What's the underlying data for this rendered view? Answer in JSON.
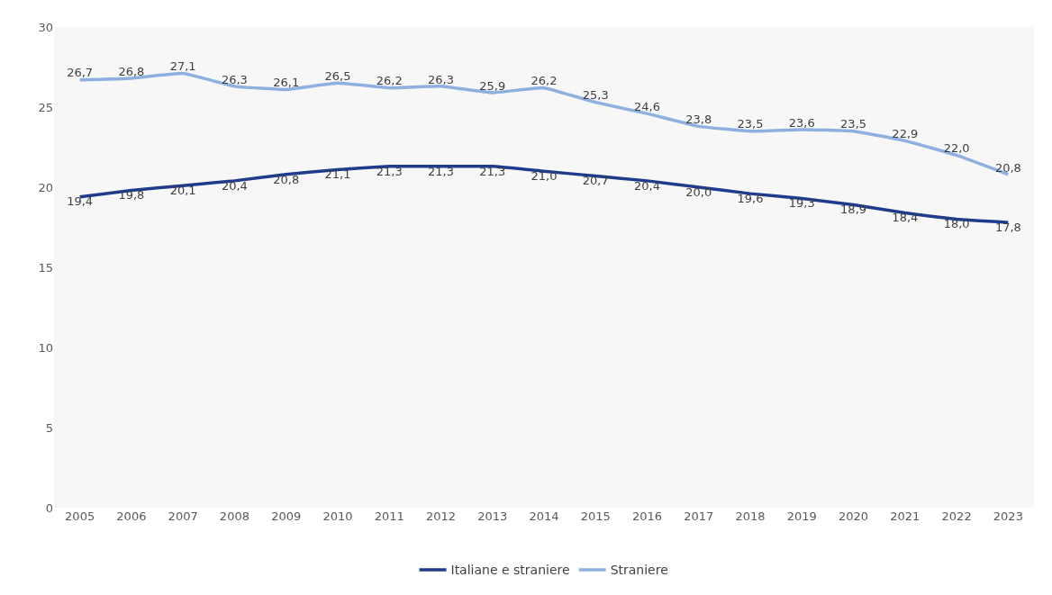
{
  "chart_data": {
    "type": "line",
    "categories": [
      "2005",
      "2006",
      "2007",
      "2008",
      "2009",
      "2010",
      "2011",
      "2012",
      "2013",
      "2014",
      "2015",
      "2016",
      "2017",
      "2018",
      "2019",
      "2020",
      "2021",
      "2022",
      "2023"
    ],
    "series": [
      {
        "name": "Italiane e straniere",
        "color": "#1f3c8c",
        "values": [
          19.4,
          19.8,
          20.1,
          20.4,
          20.8,
          21.1,
          21.3,
          21.3,
          21.3,
          21.0,
          20.7,
          20.4,
          20.0,
          19.6,
          19.3,
          18.9,
          18.4,
          18.0,
          17.8
        ],
        "value_labels": [
          "19,4",
          "19,8",
          "20,1",
          "20,4",
          "20,8",
          "21,1",
          "21,3",
          "21,3",
          "21,3",
          "21,0",
          "20,7",
          "20,4",
          "20,0",
          "19,6",
          "19,3",
          "18,9",
          "18,4",
          "18,0",
          "17,8"
        ]
      },
      {
        "name": "Straniere",
        "color": "#8eb0df",
        "values": [
          26.7,
          26.8,
          27.1,
          26.3,
          26.1,
          26.5,
          26.2,
          26.3,
          25.9,
          26.2,
          25.3,
          24.6,
          23.8,
          23.5,
          23.6,
          23.5,
          22.9,
          22.0,
          20.8
        ],
        "value_labels": [
          "26,7",
          "26,8",
          "27,1",
          "26,3",
          "26,1",
          "26,5",
          "26,2",
          "26,3",
          "25,9",
          "26,2",
          "25,3",
          "24,6",
          "23,8",
          "23,5",
          "23,6",
          "23,5",
          "22,9",
          "22,0",
          "20,8"
        ]
      }
    ],
    "ylim": [
      0,
      30
    ],
    "yticks": [
      0,
      5,
      10,
      15,
      20,
      25,
      30
    ],
    "grid": false,
    "legend": "bottom",
    "marker": "none",
    "line_style": "solid"
  }
}
